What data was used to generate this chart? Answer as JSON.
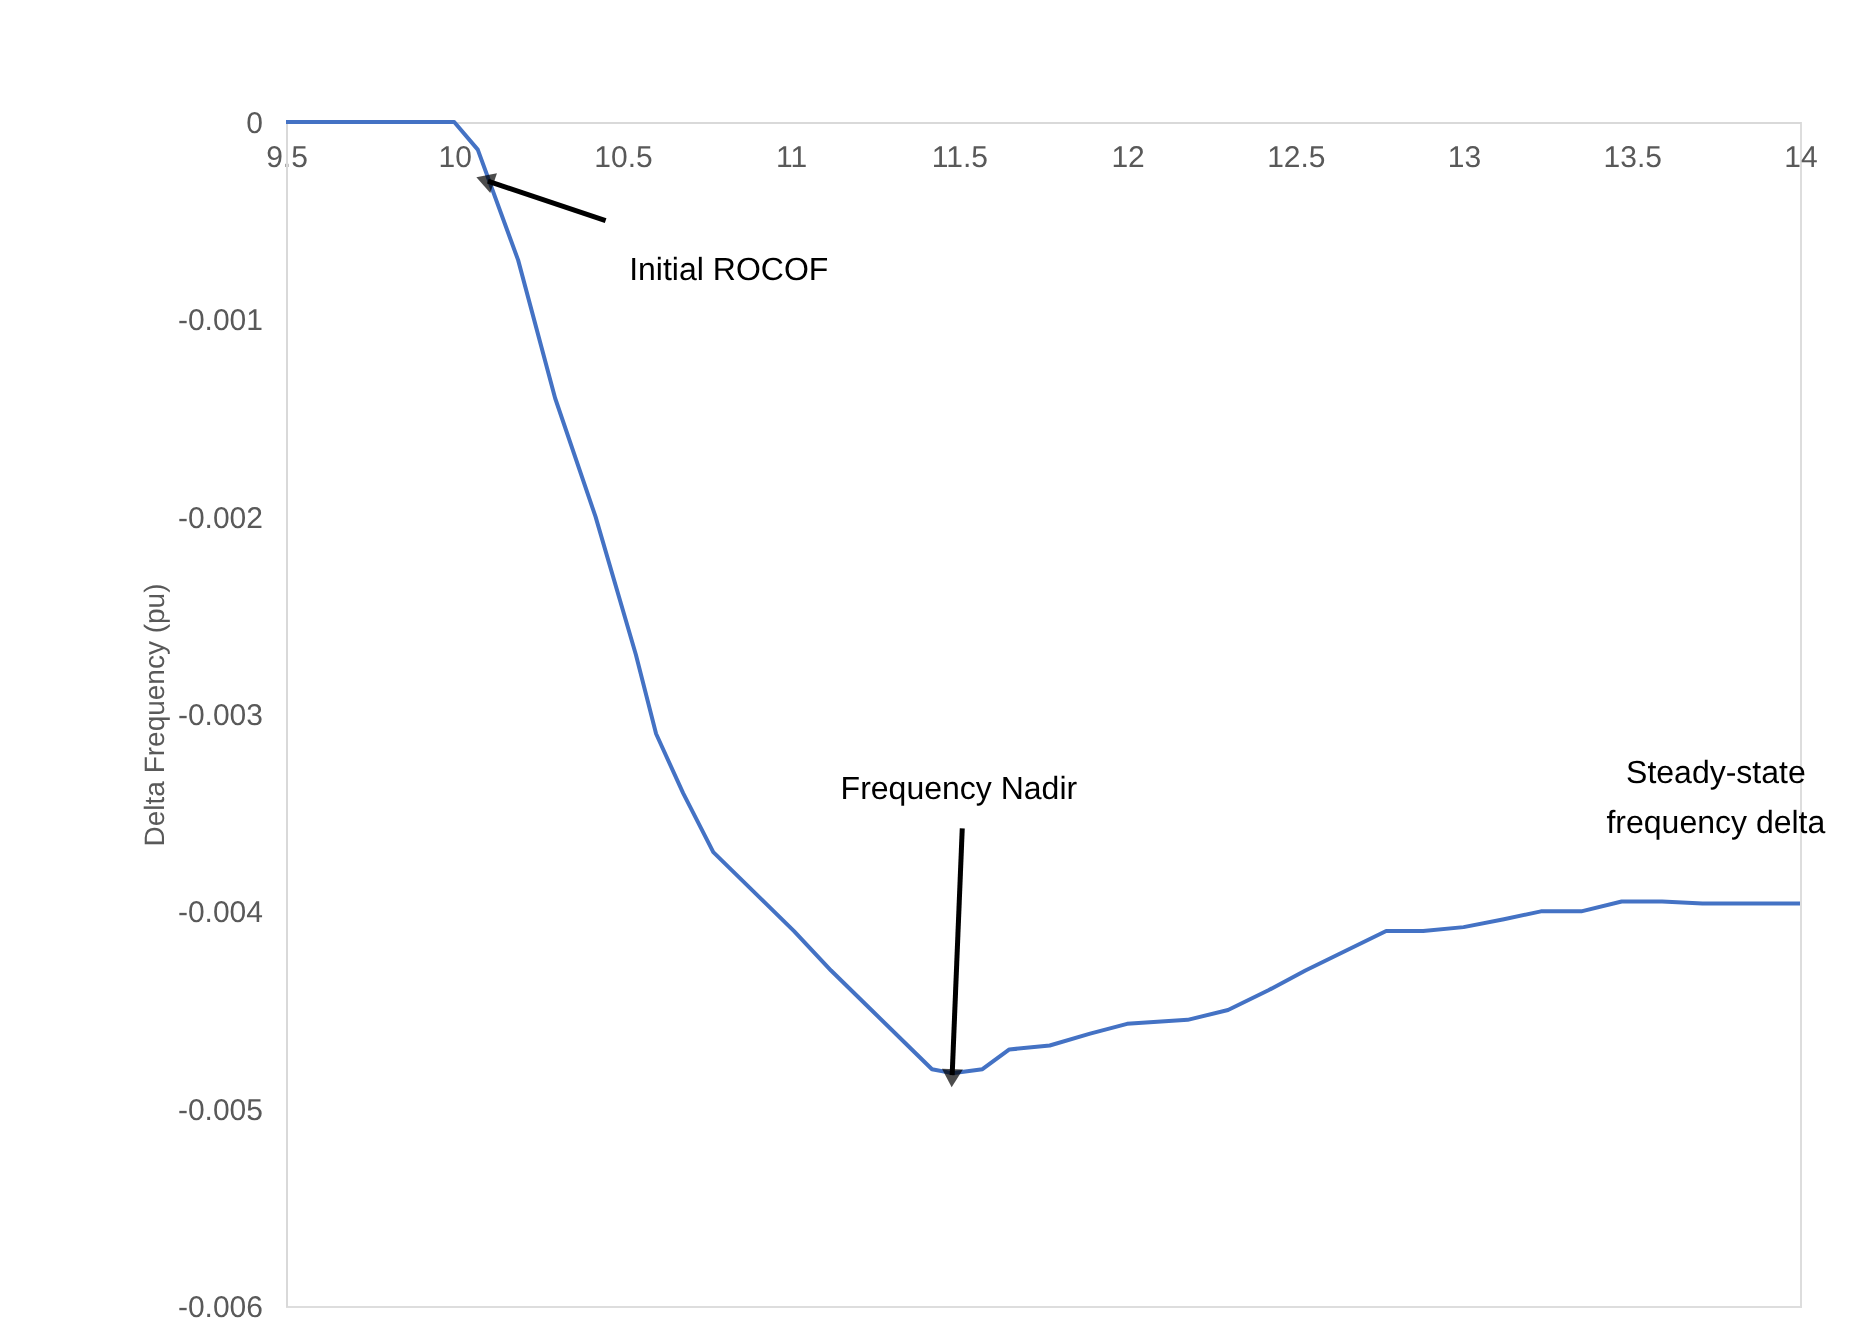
{
  "chart_data": {
    "type": "line",
    "ylabel": "Delta Frequency (pu)",
    "x": [
      9.5,
      9.8,
      10.0,
      10.07,
      10.19,
      10.3,
      10.42,
      10.54,
      10.6,
      10.68,
      10.77,
      10.89,
      11.01,
      11.12,
      11.24,
      11.36,
      11.42,
      11.48,
      11.57,
      11.65,
      11.77,
      11.89,
      12.0,
      12.18,
      12.3,
      12.42,
      12.53,
      12.65,
      12.77,
      12.88,
      13.0,
      13.12,
      13.23,
      13.35,
      13.47,
      13.59,
      13.71,
      13.82,
      14.0
    ],
    "series": [
      {
        "color": "#4472c4",
        "values": [
          0,
          0,
          0,
          -0.00014,
          -0.0007,
          -0.0014,
          -0.002,
          -0.0027,
          -0.0031,
          -0.0034,
          -0.0037,
          -0.0039,
          -0.0041,
          -0.0043,
          -0.0045,
          -0.0047,
          -0.0048,
          -0.00482,
          -0.0048,
          -0.0047,
          -0.00468,
          -0.00462,
          -0.00457,
          -0.00455,
          -0.0045,
          -0.0044,
          -0.0043,
          -0.0042,
          -0.0041,
          -0.0041,
          -0.00408,
          -0.00404,
          -0.004,
          -0.004,
          -0.00395,
          -0.00395,
          -0.00396,
          -0.00396,
          -0.00396
        ]
      }
    ],
    "xlim": [
      9.5,
      14
    ],
    "xticks": [
      9.5,
      10,
      10.5,
      11,
      11.5,
      12,
      12.5,
      13,
      13.5,
      14
    ],
    "ylim": [
      -0.006,
      0
    ],
    "yticks": [
      -0.006,
      -0.005,
      -0.004,
      -0.003,
      -0.002,
      -0.001,
      0
    ],
    "grid": false,
    "marker": "none",
    "line_style": "solid",
    "annotations": [
      {
        "text": "Initial ROCOF",
        "x": 10.1,
        "y": -0.0003
      },
      {
        "text": "Frequency Nadir",
        "x": 11.48,
        "y": -0.00483
      },
      {
        "text": "Steady-state frequency delta",
        "x": 13.6,
        "y": -0.0039
      }
    ]
  }
}
